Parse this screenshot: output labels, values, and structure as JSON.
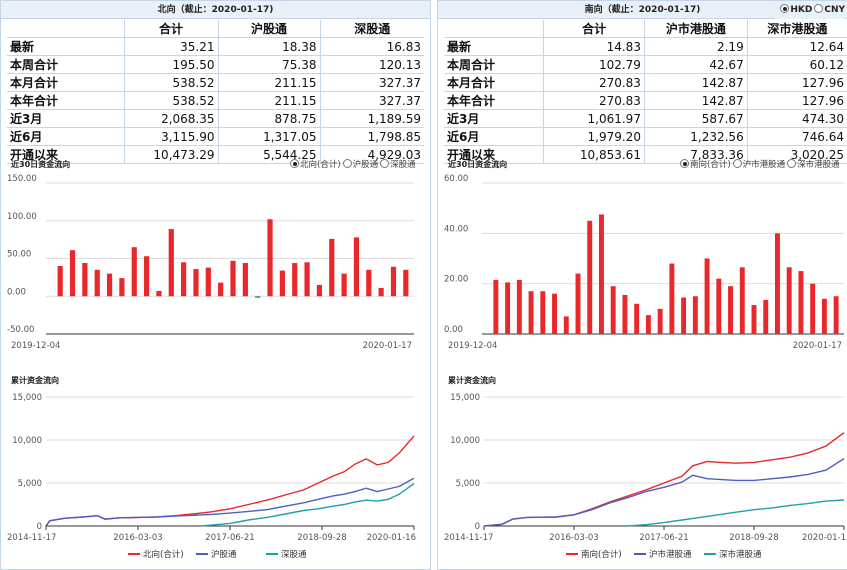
{
  "left": {
    "title": "北向（截止：2020-01-17)",
    "table": {
      "headers": [
        "合计",
        "沪股通",
        "深股通"
      ],
      "rows": [
        {
          "label": "最新",
          "values": [
            "35.21",
            "18.38",
            "16.83"
          ]
        },
        {
          "label": "本周合计",
          "values": [
            "195.50",
            "75.38",
            "120.13"
          ]
        },
        {
          "label": "本月合计",
          "values": [
            "538.52",
            "211.15",
            "327.37"
          ]
        },
        {
          "label": "本年合计",
          "values": [
            "538.52",
            "211.15",
            "327.37"
          ]
        },
        {
          "label": "近3月",
          "values": [
            "2,068.35",
            "878.75",
            "1,189.59"
          ]
        },
        {
          "label": "近6月",
          "values": [
            "3,115.90",
            "1,317.05",
            "1,798.85"
          ]
        },
        {
          "label": "开通以来",
          "values": [
            "10,473.29",
            "5,544.25",
            "4,929.03"
          ]
        }
      ]
    },
    "flow_title": "近30日资金流向",
    "flow_options": [
      "北向(合计)",
      "沪股通",
      "深股通"
    ],
    "cum_title": "累计资金流向",
    "legend": [
      "北向(合计)",
      "沪股通",
      "深股通"
    ]
  },
  "right": {
    "title": "南向（截止：2020-01-17)",
    "currency": [
      "HKD",
      "CNY"
    ],
    "table": {
      "headers": [
        "合计",
        "沪市港股通",
        "深市港股通"
      ],
      "rows": [
        {
          "label": "最新",
          "values": [
            "14.83",
            "2.19",
            "12.64"
          ]
        },
        {
          "label": "本周合计",
          "values": [
            "102.79",
            "42.67",
            "60.12"
          ]
        },
        {
          "label": "本月合计",
          "values": [
            "270.83",
            "142.87",
            "127.96"
          ]
        },
        {
          "label": "本年合计",
          "values": [
            "270.83",
            "142.87",
            "127.96"
          ]
        },
        {
          "label": "近3月",
          "values": [
            "1,061.97",
            "587.67",
            "474.30"
          ]
        },
        {
          "label": "近6月",
          "values": [
            "1,979.20",
            "1,232.56",
            "746.64"
          ]
        },
        {
          "label": "开通以来",
          "values": [
            "10,853.61",
            "7,833.36",
            "3,020.25"
          ]
        }
      ]
    },
    "flow_title": "近30日资金流向",
    "flow_options": [
      "南向(合计)",
      "沪市港股通",
      "深市港股通"
    ],
    "cum_title": "累计资金流向",
    "legend": [
      "南向(合计)",
      "沪市港股通",
      "深市港股通"
    ]
  },
  "colors": {
    "total": "#e8282b",
    "sh": "#4e5fc3",
    "sz": "#21a0a8",
    "neg": "#2a9a6a",
    "grid": "#dddddd",
    "axis": "#333333"
  },
  "chart_data": [
    {
      "id": "north_daily",
      "type": "bar",
      "ylim": [
        -50,
        150
      ],
      "yticks": [
        "-50.00",
        "0.00",
        "50.00",
        "100.00",
        "150.00"
      ],
      "xtick_labels": [
        "2019-12-04",
        "2020-01-17"
      ],
      "values": [
        40,
        61,
        44,
        35,
        30,
        24,
        65,
        53,
        7,
        89,
        45,
        36,
        38,
        18,
        47,
        44,
        -2,
        102,
        34,
        44,
        45,
        15,
        76,
        30,
        78,
        35,
        11,
        39,
        35
      ]
    },
    {
      "id": "north_cum",
      "type": "line",
      "ylim": [
        0,
        15000
      ],
      "yticks": [
        "0",
        "5,000",
        "10,000",
        "15,000"
      ],
      "xtick_labels": [
        "2014-11-17",
        "2016-03-03",
        "2017-06-21",
        "2018-09-28",
        "2020-01-16"
      ],
      "series": [
        {
          "key": "total",
          "points": [
            [
              0,
              0
            ],
            [
              0.01,
              600
            ],
            [
              0.05,
              900
            ],
            [
              0.1,
              1050
            ],
            [
              0.14,
              1200
            ],
            [
              0.16,
              800
            ],
            [
              0.2,
              950
            ],
            [
              0.25,
              1000
            ],
            [
              0.3,
              1050
            ],
            [
              0.35,
              1200
            ],
            [
              0.4,
              1400
            ],
            [
              0.45,
              1650
            ],
            [
              0.5,
              2000
            ],
            [
              0.55,
              2500
            ],
            [
              0.6,
              3000
            ],
            [
              0.65,
              3600
            ],
            [
              0.7,
              4200
            ],
            [
              0.74,
              5000
            ],
            [
              0.78,
              5800
            ],
            [
              0.81,
              6300
            ],
            [
              0.84,
              7200
            ],
            [
              0.87,
              7800
            ],
            [
              0.9,
              7100
            ],
            [
              0.93,
              7400
            ],
            [
              0.96,
              8500
            ],
            [
              1.0,
              10473
            ]
          ]
        },
        {
          "key": "sh",
          "points": [
            [
              0,
              0
            ],
            [
              0.01,
              600
            ],
            [
              0.05,
              900
            ],
            [
              0.1,
              1050
            ],
            [
              0.14,
              1200
            ],
            [
              0.16,
              800
            ],
            [
              0.2,
              950
            ],
            [
              0.25,
              1000
            ],
            [
              0.3,
              1050
            ],
            [
              0.35,
              1150
            ],
            [
              0.4,
              1250
            ],
            [
              0.45,
              1350
            ],
            [
              0.5,
              1500
            ],
            [
              0.55,
              1700
            ],
            [
              0.6,
              1900
            ],
            [
              0.65,
              2300
            ],
            [
              0.7,
              2700
            ],
            [
              0.74,
              3100
            ],
            [
              0.78,
              3500
            ],
            [
              0.81,
              3700
            ],
            [
              0.84,
              4000
            ],
            [
              0.87,
              4400
            ],
            [
              0.9,
              4000
            ],
            [
              0.93,
              4300
            ],
            [
              0.96,
              4600
            ],
            [
              1.0,
              5544
            ]
          ]
        },
        {
          "key": "sz",
          "points": [
            [
              0.42,
              0
            ],
            [
              0.45,
              100
            ],
            [
              0.5,
              300
            ],
            [
              0.55,
              700
            ],
            [
              0.6,
              1000
            ],
            [
              0.65,
              1400
            ],
            [
              0.7,
              1800
            ],
            [
              0.74,
              2000
            ],
            [
              0.78,
              2300
            ],
            [
              0.81,
              2500
            ],
            [
              0.84,
              2800
            ],
            [
              0.87,
              3000
            ],
            [
              0.9,
              2900
            ],
            [
              0.93,
              3100
            ],
            [
              0.96,
              3700
            ],
            [
              1.0,
              4929
            ]
          ]
        }
      ]
    },
    {
      "id": "south_daily",
      "type": "bar",
      "ylim": [
        0,
        60
      ],
      "yticks": [
        "0.00",
        "20.00",
        "40.00",
        "60.00"
      ],
      "xtick_labels": [
        "2019-12-04",
        "2020-01-17"
      ],
      "values": [
        21.5,
        20.5,
        21.5,
        17,
        17,
        16,
        7,
        24,
        45,
        47.5,
        19,
        15.5,
        12,
        7.5,
        10,
        28,
        14.5,
        15,
        30,
        22,
        19,
        26.5,
        11.5,
        13.5,
        40,
        26.5,
        25,
        20,
        14,
        15
      ]
    },
    {
      "id": "south_cum",
      "type": "line",
      "ylim": [
        0,
        15000
      ],
      "yticks": [
        "0",
        "5,000",
        "10,000",
        "15,000"
      ],
      "xtick_labels": [
        "2014-11-17",
        "2016-03-03",
        "2017-06-21",
        "2018-09-28",
        "2020-01-1"
      ],
      "series": [
        {
          "key": "total",
          "points": [
            [
              0,
              0
            ],
            [
              0.05,
              200
            ],
            [
              0.08,
              800
            ],
            [
              0.12,
              1000
            ],
            [
              0.2,
              1050
            ],
            [
              0.25,
              1300
            ],
            [
              0.3,
              2000
            ],
            [
              0.35,
              2800
            ],
            [
              0.4,
              3500
            ],
            [
              0.45,
              4200
            ],
            [
              0.5,
              5000
            ],
            [
              0.55,
              5800
            ],
            [
              0.58,
              7000
            ],
            [
              0.62,
              7500
            ],
            [
              0.66,
              7400
            ],
            [
              0.7,
              7300
            ],
            [
              0.75,
              7400
            ],
            [
              0.8,
              7700
            ],
            [
              0.85,
              8000
            ],
            [
              0.9,
              8500
            ],
            [
              0.95,
              9300
            ],
            [
              1.0,
              10853
            ]
          ]
        },
        {
          "key": "sh",
          "points": [
            [
              0,
              0
            ],
            [
              0.05,
              200
            ],
            [
              0.08,
              800
            ],
            [
              0.12,
              1000
            ],
            [
              0.2,
              1050
            ],
            [
              0.25,
              1300
            ],
            [
              0.3,
              1900
            ],
            [
              0.35,
              2700
            ],
            [
              0.4,
              3300
            ],
            [
              0.45,
              4000
            ],
            [
              0.5,
              4500
            ],
            [
              0.55,
              5100
            ],
            [
              0.58,
              5900
            ],
            [
              0.62,
              5500
            ],
            [
              0.66,
              5400
            ],
            [
              0.7,
              5300
            ],
            [
              0.75,
              5300
            ],
            [
              0.8,
              5500
            ],
            [
              0.85,
              5700
            ],
            [
              0.9,
              6000
            ],
            [
              0.95,
              6500
            ],
            [
              1.0,
              7833
            ]
          ]
        },
        {
          "key": "sz",
          "points": [
            [
              0.4,
              0
            ],
            [
              0.45,
              150
            ],
            [
              0.5,
              400
            ],
            [
              0.55,
              700
            ],
            [
              0.6,
              1000
            ],
            [
              0.65,
              1300
            ],
            [
              0.7,
              1600
            ],
            [
              0.75,
              1900
            ],
            [
              0.8,
              2100
            ],
            [
              0.85,
              2400
            ],
            [
              0.9,
              2600
            ],
            [
              0.95,
              2900
            ],
            [
              1.0,
              3020
            ]
          ]
        }
      ]
    }
  ]
}
